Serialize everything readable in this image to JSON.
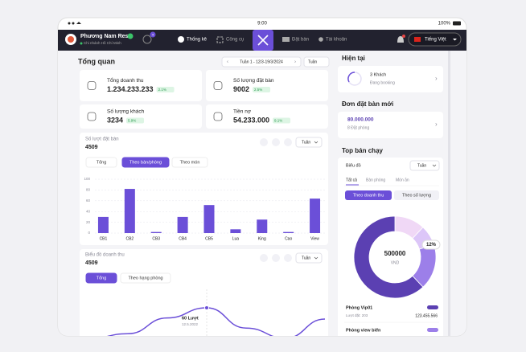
{
  "status_bar": {
    "time": "9:00",
    "battery": "100%"
  },
  "navbar": {
    "restaurant_name": "Phương Nam Res",
    "branch": "Chi nhánh Hồ Chí Minh",
    "badge": "4",
    "nav": [
      "Thống kê",
      "Công cụ",
      "Đặt bàn",
      "Tài khoản"
    ],
    "language": "Tiếng Việt"
  },
  "overview": {
    "title": "Tổng quan",
    "period": "Tuần 1 - 12/3-19/3/2024",
    "period_unit": "Tuần",
    "stats": [
      {
        "label": "Tổng doanh thu",
        "value": "1.234.233.233",
        "change": "2.1%"
      },
      {
        "label": "Số lượng đặt bàn",
        "value": "9002",
        "change": "2.5%"
      },
      {
        "label": "Số lượng khách",
        "value": "3234",
        "change": "5.9%"
      },
      {
        "label": "Tiền nợ",
        "value": "54.233.000",
        "change": "9.1%"
      }
    ]
  },
  "bookings_chart": {
    "title": "Số lượt đặt bàn",
    "total": 4509,
    "unit_select": "Tuần",
    "tabs": [
      "Tổng",
      "Theo bàn/phòng",
      "Theo món"
    ],
    "active_tab": 1,
    "color": "#6b4fd8",
    "ylim": [
      0,
      100
    ],
    "yticks": [
      0,
      20,
      40,
      60,
      80,
      100
    ],
    "categories": [
      "CB1",
      "CB2",
      "CB3",
      "CB4",
      "CB5",
      "Lua",
      "King",
      "Cao",
      "View"
    ],
    "values": [
      30,
      82,
      2,
      30,
      52,
      7,
      25,
      2,
      64
    ]
  },
  "revenue_chart": {
    "title": "Biểu đồ doanh thu",
    "total": 4509,
    "unit_select": "Tuần",
    "tabs": [
      "Tổng",
      "Theo hạng phòng"
    ],
    "active_tab": 0,
    "color": "#6b4fd8",
    "values": [
      5,
      14,
      42,
      60,
      24,
      6,
      40
    ],
    "highlight_index": 3,
    "tooltip": {
      "value_label": "60 Lượt",
      "date": "12.5.2022"
    }
  },
  "current": {
    "title": "Hiện tại",
    "guests": "3 Khách",
    "status": "Đang booking"
  },
  "new_orders": {
    "title": "Đơn đặt bàn mới",
    "amount": "80.000.000",
    "count": "8 Đặt phòng"
  },
  "top_selling": {
    "title": "Top bán chạy",
    "chart_label": "Biểu đồ",
    "unit_select": "Tuần",
    "tabs": [
      "Tất cả",
      "Bàn phòng",
      "Món ăn"
    ],
    "active_tab": 0,
    "toggles": [
      "Theo doanh thu",
      "Theo số lượng"
    ],
    "active_toggle": 0,
    "donut": {
      "values": [
        12,
        8,
        18,
        62
      ],
      "colors": [
        "#f0d8f6",
        "#dcc6f8",
        "#9c7fe9",
        "#5b40b2"
      ],
      "center_value": "500000",
      "center_unit": "VND",
      "highlight_label": "12%"
    },
    "items": [
      {
        "name": "Phòng Vip01",
        "bookings": "Lượt đặt: 203",
        "amount": "123.455.566"
      },
      {
        "name": "Phòng view biển"
      }
    ]
  }
}
